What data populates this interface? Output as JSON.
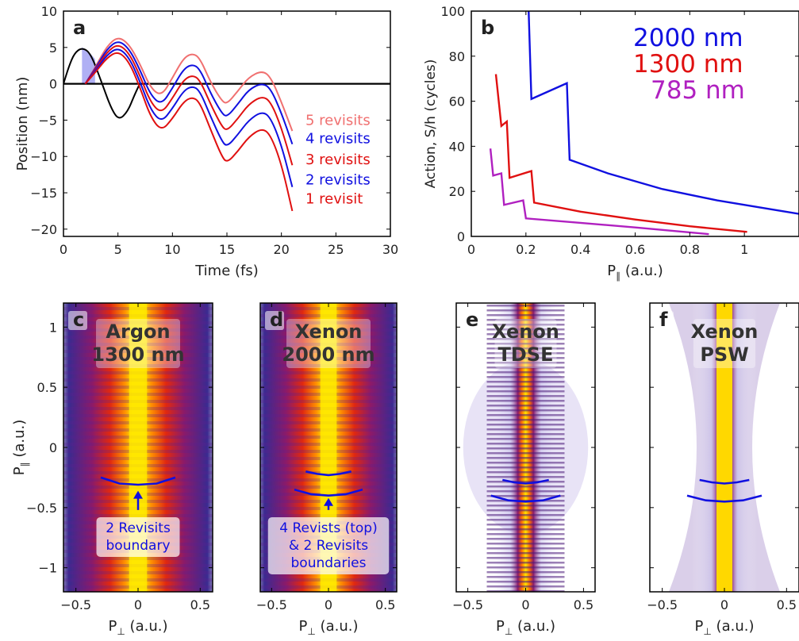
{
  "colors": {
    "black": "#000000",
    "blue": "#1010e0",
    "red": "#e01010",
    "light_red": "#f07070",
    "mid_blue": "#4040ee",
    "purple": "#b020c0",
    "shade": "#8e8ef0"
  },
  "chart_data": [
    {
      "id": "a",
      "type": "line",
      "panel_label": "a",
      "xlabel": "Time (fs)",
      "ylabel": "Position (nm)",
      "xlim": [
        0,
        30
      ],
      "ylim": [
        -21,
        10
      ],
      "xticks": [
        0,
        5,
        10,
        15,
        20,
        25,
        30
      ],
      "yticks": [
        10,
        5,
        0,
        -5,
        -10,
        -15,
        -20
      ],
      "series": [
        {
          "name": "",
          "color": "black",
          "x": [
            0,
            0.5,
            1,
            1.7,
            2.5,
            3.5,
            4.4,
            5.1,
            5.9,
            6.5,
            7
          ],
          "y": [
            0,
            2.4,
            4.2,
            5,
            4.2,
            0.2,
            -3.5,
            -5,
            -3.8,
            -1.6,
            0
          ]
        },
        {
          "name": "5 revisits",
          "color": "light_red",
          "x": [
            2.0,
            3,
            4,
            5,
            6,
            7,
            8,
            9,
            10,
            11,
            11.8,
            12.5,
            13.5,
            14.5,
            15,
            16,
            17,
            18.2,
            19,
            20,
            21
          ],
          "y": [
            0,
            2.5,
            5.2,
            6.5,
            5.5,
            2.8,
            -0.6,
            -1.7,
            0.8,
            3.5,
            4.2,
            3.6,
            0.2,
            -2.3,
            -2.8,
            -1,
            0.9,
            1.8,
            1,
            -2.5,
            -6.5
          ]
        },
        {
          "name": "4 revisits",
          "color": "blue",
          "x": [
            2.0,
            3,
            4,
            5,
            6,
            7,
            8,
            9,
            10,
            11,
            11.8,
            12.5,
            13.5,
            14.5,
            15,
            16,
            17,
            18.2,
            19,
            20,
            21
          ],
          "y": [
            0,
            2.3,
            4.8,
            6,
            4.9,
            2,
            -1.6,
            -2.9,
            -0.6,
            2,
            2.7,
            2.1,
            -1.3,
            -4,
            -4.6,
            -2.8,
            -0.8,
            0.1,
            -0.6,
            -4,
            -8.3
          ]
        },
        {
          "name": "3 revisits",
          "color": "red",
          "x": [
            2.0,
            3,
            4,
            5,
            6,
            7,
            8,
            9,
            10,
            11,
            11.8,
            12.5,
            13.5,
            14.5,
            15,
            16,
            17,
            18.2,
            19,
            20,
            21
          ],
          "y": [
            0,
            2.1,
            4.4,
            5.5,
            4.3,
            1.2,
            -2.6,
            -4.1,
            -2,
            0.5,
            1.2,
            0.6,
            -2.8,
            -5.8,
            -6.5,
            -4.8,
            -2.8,
            -1.7,
            -2.4,
            -6,
            -11.2
          ]
        },
        {
          "name": "2 revisits",
          "color": "blue",
          "x": [
            2.0,
            3,
            4,
            5,
            6,
            7,
            8,
            9,
            10,
            11,
            11.8,
            12.5,
            13.5,
            14.5,
            15,
            16,
            17,
            18.2,
            19,
            20,
            21
          ],
          "y": [
            0,
            1.9,
            4,
            5,
            3.7,
            0.4,
            -3.6,
            -5.3,
            -3.4,
            -1,
            -0.3,
            -0.9,
            -4.5,
            -7.8,
            -8.7,
            -7,
            -5,
            -3.8,
            -4.6,
            -8.4,
            -14.2
          ]
        },
        {
          "name": "1 revisit",
          "color": "red",
          "x": [
            2.0,
            3,
            4,
            5,
            6,
            7,
            8,
            9,
            10,
            11,
            11.8,
            12.5,
            13.5,
            14.5,
            15,
            16,
            17,
            18.2,
            19,
            20,
            21
          ],
          "y": [
            0,
            1.7,
            3.6,
            4.5,
            3.1,
            -0.4,
            -4.6,
            -6.5,
            -4.8,
            -2.5,
            -1.8,
            -2.5,
            -6.3,
            -9.9,
            -10.9,
            -9.3,
            -7.3,
            -6.1,
            -7,
            -11,
            -17.5
          ]
        }
      ],
      "labels": [
        {
          "text": "5 revisits",
          "color": "light_red",
          "y": -5
        },
        {
          "text": "4 revisits",
          "color": "blue",
          "y": -7.5
        },
        {
          "text": "3 revisits",
          "color": "red",
          "y": -10.4
        },
        {
          "text": "2 revisits",
          "color": "blue",
          "y": -13.2
        },
        {
          "text": "1 revisit",
          "color": "red",
          "y": -15.8
        }
      ]
    },
    {
      "id": "b",
      "type": "line",
      "panel_label": "b",
      "xlabel": "P∥ (a.u.)",
      "ylabel": "Action, S/h (cycles)",
      "xlim": [
        0.0,
        1.2
      ],
      "ylim": [
        0,
        100
      ],
      "xticks": [
        0.0,
        0.2,
        0.4,
        0.6,
        0.8,
        1.0
      ],
      "yticks": [
        0,
        20,
        40,
        60,
        80,
        100
      ],
      "series": [
        {
          "name": "2000 nm",
          "color": "blue",
          "x": [
            0.21,
            0.22,
            0.35,
            0.36,
            0.5,
            0.7,
            0.9,
            1.1,
            1.2
          ],
          "y": [
            100,
            61,
            68,
            34,
            28,
            21,
            16,
            12,
            10
          ]
        },
        {
          "name": "1300 nm",
          "color": "red",
          "x": [
            0.09,
            0.11,
            0.13,
            0.14,
            0.22,
            0.23,
            0.4,
            0.6,
            0.8,
            1.01
          ],
          "y": [
            72,
            49,
            51,
            26,
            29,
            15,
            11,
            7.5,
            4.5,
            2
          ]
        },
        {
          "name": "785 nm",
          "color": "purple",
          "x": [
            0.07,
            0.08,
            0.11,
            0.12,
            0.19,
            0.2,
            0.4,
            0.6,
            0.87
          ],
          "y": [
            39,
            27,
            28,
            14,
            16,
            8,
            6,
            4,
            1
          ]
        }
      ],
      "legend": [
        {
          "text": "2000 nm",
          "color": "blue"
        },
        {
          "text": "1300 nm",
          "color": "red"
        },
        {
          "text": "785 nm",
          "color": "purple"
        }
      ]
    },
    {
      "id": "c",
      "type": "heatmap",
      "panel_label": "c",
      "title_lines": [
        "Argon",
        "1300 nm"
      ],
      "xlabel": "P⊥ (a.u.)",
      "ylabel": "P∥ (a.u.)",
      "xlim": [
        -0.6,
        0.6
      ],
      "ylim": [
        -1.2,
        1.2
      ],
      "xticks": [
        -0.5,
        0.0,
        0.5
      ],
      "yticks": [
        1.0,
        0.5,
        0.0,
        -0.5,
        -1.0
      ],
      "boundaries": [
        [
          [
            -0.3,
            -0.25
          ],
          [
            -0.15,
            -0.3
          ],
          [
            0,
            -0.31
          ],
          [
            0.15,
            -0.3
          ],
          [
            0.3,
            -0.25
          ]
        ]
      ],
      "arrow": {
        "x": 0,
        "from": -0.52,
        "to": -0.36
      },
      "annotation": [
        "2 Revisits",
        "boundary"
      ]
    },
    {
      "id": "d",
      "type": "heatmap",
      "panel_label": "d",
      "title_lines": [
        "Xenon",
        "2000 nm"
      ],
      "xlabel": "P⊥ (a.u.)",
      "ylabel": "",
      "xlim": [
        -0.6,
        0.6
      ],
      "ylim": [
        -1.2,
        1.2
      ],
      "xticks": [
        -0.5,
        0.0,
        0.5
      ],
      "yticks": [],
      "boundaries": [
        [
          [
            -0.2,
            -0.2
          ],
          [
            -0.1,
            -0.22
          ],
          [
            0,
            -0.23
          ],
          [
            0.1,
            -0.22
          ],
          [
            0.2,
            -0.2
          ]
        ],
        [
          [
            -0.3,
            -0.35
          ],
          [
            -0.15,
            -0.39
          ],
          [
            0,
            -0.4
          ],
          [
            0.15,
            -0.39
          ],
          [
            0.3,
            -0.35
          ]
        ]
      ],
      "arrow": {
        "x": 0,
        "from": -0.52,
        "to": -0.42
      },
      "annotation": [
        "4 Revists (top)",
        "& 2 Revisits",
        "boundaries"
      ]
    },
    {
      "id": "e",
      "type": "heatmap",
      "panel_label": "e",
      "title_lines": [
        "Xenon",
        "TDSE"
      ],
      "xlabel": "P⊥ (a.u.)",
      "ylabel": "",
      "xlim": [
        -0.6,
        0.6
      ],
      "ylim": [
        -1.2,
        1.2
      ],
      "xticks": [
        -0.5,
        0.0,
        0.5
      ],
      "yticks": [],
      "boundaries": [
        [
          [
            -0.2,
            -0.27
          ],
          [
            -0.1,
            -0.29
          ],
          [
            0,
            -0.3
          ],
          [
            0.1,
            -0.29
          ],
          [
            0.2,
            -0.27
          ]
        ],
        [
          [
            -0.3,
            -0.4
          ],
          [
            -0.15,
            -0.44
          ],
          [
            0,
            -0.45
          ],
          [
            0.15,
            -0.44
          ],
          [
            0.3,
            -0.4
          ]
        ]
      ]
    },
    {
      "id": "f",
      "type": "heatmap",
      "panel_label": "f",
      "title_lines": [
        "Xenon",
        "PSW"
      ],
      "xlabel": "P⊥ (a.u.)",
      "ylabel": "",
      "xlim": [
        -0.6,
        0.6
      ],
      "ylim": [
        -1.2,
        1.2
      ],
      "xticks": [
        -0.5,
        0.0,
        0.5
      ],
      "yticks": [],
      "boundaries": [
        [
          [
            -0.2,
            -0.27
          ],
          [
            -0.1,
            -0.29
          ],
          [
            0,
            -0.3
          ],
          [
            0.1,
            -0.29
          ],
          [
            0.2,
            -0.27
          ]
        ],
        [
          [
            -0.3,
            -0.4
          ],
          [
            -0.15,
            -0.44
          ],
          [
            0,
            -0.45
          ],
          [
            0.15,
            -0.44
          ],
          [
            0.3,
            -0.4
          ]
        ]
      ]
    }
  ]
}
